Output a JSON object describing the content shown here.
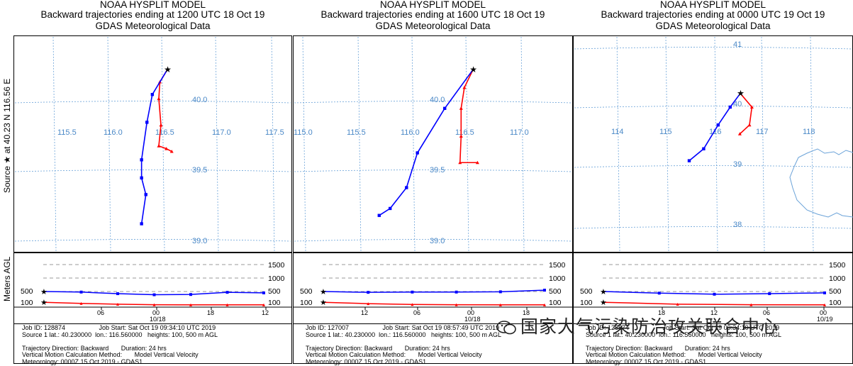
{
  "y_axis_label": "Source ★  at    40.23 N   116.56 E",
  "lower_axis_label": "Meters AGL",
  "watermark": "国家大气污染防治攻关联合中心",
  "panels": [
    {
      "title1": "NOAA HYSPLIT MODEL",
      "title2": "Backward trajectories ending at 1200 UTC 18 Oct 19",
      "title3": "GDAS Meteorological Data",
      "lon_labels": [
        "115.5",
        "116.0",
        "116.5",
        "117.0",
        "117.5"
      ],
      "lat_labels": [
        "40.0",
        "39.5",
        "39.0"
      ],
      "height_labels": [
        "1500",
        "1000",
        "500",
        "100"
      ],
      "time_labels": [
        "06",
        "00",
        "18",
        "12"
      ],
      "date_label": "10/18",
      "footer": "Job ID: 128874                   Job Start: Sat Oct 19 09:34:10 UTC 2019\nSource 1 lat.: 40.230000  lon.: 116.560000   heights: 100, 500 m AGL\n\nTrajectory Direction: Backward       Duration: 24 hrs\nVertical Motion Calculation Method:       Model Vertical Velocity\nMeteorology: 0000Z 15 Oct 2019 - GDAS1"
    },
    {
      "title1": "NOAA HYSPLIT MODEL",
      "title2": "Backward trajectories ending at 1600 UTC 18 Oct 19",
      "title3": "GDAS Meteorological Data",
      "lon_labels": [
        "115.0",
        "115.5",
        "116.0",
        "116.5",
        "117.0"
      ],
      "lat_labels": [
        "40.0",
        "39.5",
        "39.0"
      ],
      "height_labels": [
        "1500",
        "1000",
        "500",
        "100"
      ],
      "time_labels": [
        "12",
        "06",
        "00",
        "18"
      ],
      "date_label": "10/18",
      "footer": "Job ID: 127007                   Job Start: Sat Oct 19 08:57:49 UTC 2019\nSource 1 lat.: 40.230000  lon.: 116.560000   heights: 100, 500 m AGL\n\nTrajectory Direction: Backward       Duration: 24 hrs\nVertical Motion Calculation Method:       Model Vertical Velocity\nMeteorology: 0000Z 15 Oct 2019 - GDAS1"
    },
    {
      "title1": "NOAA HYSPLIT MODEL",
      "title2": "Backward trajectories ending at 0000 UTC 19 Oct 19",
      "title3": "GDAS Meteorological Data",
      "lon_labels": [
        "114",
        "115",
        "116",
        "117",
        "118"
      ],
      "lat_labels": [
        "41",
        "40",
        "39",
        "38"
      ],
      "height_labels": [
        "1500",
        "1000",
        "500",
        "100"
      ],
      "time_labels": [
        "18",
        "12",
        "06",
        "00"
      ],
      "date_label": "10/19",
      "footer": "Job ID: 128874                   Job Start: Sat Oct 19 09:34:10 UTC 2019\nSource 1 lat.: 40.230000  lon.: 116.560000   heights: 100, 500 m AGL\n\nTrajectory Direction: Backward       Duration: 24 hrs\nVertical Motion Calculation Method:       Model Vertical Velocity\nMeteorology: 0000Z 15 Oct 2019 - GDAS1"
    }
  ],
  "chart_data": [
    {
      "type": "line",
      "title": "Backward trajectories ending at 1200 UTC 18 Oct 19",
      "source": {
        "lat": 40.23,
        "lon": 116.56
      },
      "series": [
        {
          "name": "100 m AGL",
          "color": "#ff0000",
          "path": [
            [
              116.56,
              40.23
            ],
            [
              116.49,
              40.14
            ],
            [
              116.48,
              40.02
            ],
            [
              116.5,
              39.83
            ],
            [
              116.48,
              39.68
            ],
            [
              116.55,
              39.66
            ],
            [
              116.6,
              39.64
            ]
          ],
          "heights": [
            100,
            60,
            30,
            10,
            5,
            5,
            5
          ]
        },
        {
          "name": "500 m AGL",
          "color": "#0000ff",
          "path": [
            [
              116.56,
              40.23
            ],
            [
              116.42,
              40.05
            ],
            [
              116.37,
              39.85
            ],
            [
              116.32,
              39.58
            ],
            [
              116.32,
              39.45
            ],
            [
              116.36,
              39.33
            ],
            [
              116.32,
              39.12
            ]
          ],
          "heights": [
            500,
            480,
            420,
            380,
            390,
            470,
            450
          ]
        }
      ]
    },
    {
      "type": "line",
      "title": "Backward trajectories ending at 1600 UTC 18 Oct 19",
      "source": {
        "lat": 40.23,
        "lon": 116.56
      },
      "series": [
        {
          "name": "100 m AGL",
          "color": "#ff0000",
          "path": [
            [
              116.56,
              40.23
            ],
            [
              116.48,
              40.1
            ],
            [
              116.45,
              39.95
            ],
            [
              116.45,
              39.75
            ],
            [
              116.44,
              39.56
            ],
            [
              116.6,
              39.56
            ]
          ],
          "heights": [
            100,
            50,
            20,
            10,
            5,
            5
          ]
        },
        {
          "name": "500 m AGL",
          "color": "#0000ff",
          "path": [
            [
              116.56,
              40.23
            ],
            [
              116.3,
              39.95
            ],
            [
              116.05,
              39.63
            ],
            [
              115.95,
              39.38
            ],
            [
              115.8,
              39.23
            ],
            [
              115.7,
              39.18
            ]
          ],
          "heights": [
            500,
            470,
            480,
            480,
            490,
            550
          ]
        }
      ]
    },
    {
      "type": "line",
      "title": "Backward trajectories ending at 0000 UTC 19 Oct 19",
      "source": {
        "lat": 40.23,
        "lon": 116.56
      },
      "series": [
        {
          "name": "100 m AGL",
          "color": "#ff0000",
          "path": [
            [
              116.56,
              40.23
            ],
            [
              116.8,
              40.0
            ],
            [
              116.75,
              39.7
            ],
            [
              116.55,
              39.55
            ]
          ],
          "heights": [
            100,
            30,
            10,
            5
          ]
        },
        {
          "name": "500 m AGL",
          "color": "#0000ff",
          "path": [
            [
              116.56,
              40.23
            ],
            [
              116.35,
              40.0
            ],
            [
              116.1,
              39.7
            ],
            [
              115.8,
              39.3
            ],
            [
              115.5,
              39.1
            ]
          ],
          "heights": [
            500,
            440,
            400,
            420,
            450
          ]
        }
      ]
    }
  ]
}
